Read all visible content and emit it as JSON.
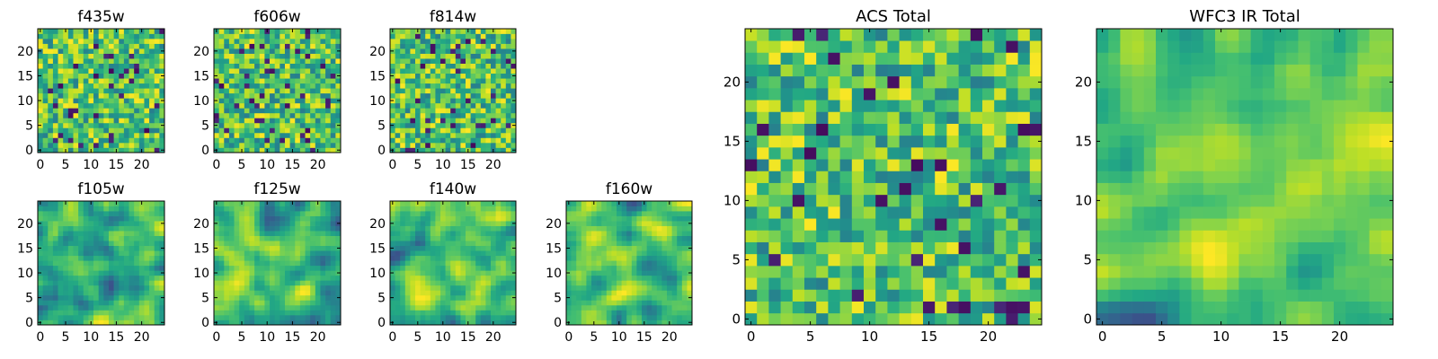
{
  "chart_data": [
    {
      "type": "heatmap",
      "title": "f435w",
      "grid_size": 25,
      "xticks": [
        0,
        5,
        10,
        15,
        20
      ],
      "yticks": [
        0,
        5,
        10,
        15,
        20
      ],
      "xlim": [
        0,
        25
      ],
      "ylim": [
        0,
        25
      ],
      "colormap": "viridis",
      "texture": "pixel noise",
      "seed": 11
    },
    {
      "type": "heatmap",
      "title": "f606w",
      "grid_size": 25,
      "xticks": [
        0,
        5,
        10,
        15,
        20
      ],
      "yticks": [
        0,
        5,
        10,
        15,
        20
      ],
      "xlim": [
        0,
        25
      ],
      "ylim": [
        0,
        25
      ],
      "colormap": "viridis",
      "texture": "pixel noise",
      "seed": 23
    },
    {
      "type": "heatmap",
      "title": "f814w",
      "grid_size": 25,
      "xticks": [
        0,
        5,
        10,
        15,
        20
      ],
      "yticks": [
        0,
        5,
        10,
        15,
        20
      ],
      "xlim": [
        0,
        25
      ],
      "ylim": [
        0,
        25
      ],
      "colormap": "viridis",
      "texture": "pixel noise",
      "seed": 37
    },
    {
      "type": "heatmap",
      "title": "f105w",
      "grid_size": 25,
      "xticks": [
        0,
        5,
        10,
        15,
        20
      ],
      "yticks": [
        0,
        5,
        10,
        15,
        20
      ],
      "xlim": [
        0,
        25
      ],
      "ylim": [
        0,
        25
      ],
      "colormap": "viridis",
      "texture": "smooth noise",
      "seed": 41
    },
    {
      "type": "heatmap",
      "title": "f125w",
      "grid_size": 25,
      "xticks": [
        0,
        5,
        10,
        15,
        20
      ],
      "yticks": [
        0,
        5,
        10,
        15,
        20
      ],
      "xlim": [
        0,
        25
      ],
      "ylim": [
        0,
        25
      ],
      "colormap": "viridis",
      "texture": "smooth noise",
      "seed": 53
    },
    {
      "type": "heatmap",
      "title": "f140w",
      "grid_size": 25,
      "xticks": [
        0,
        5,
        10,
        15,
        20
      ],
      "yticks": [
        0,
        5,
        10,
        15,
        20
      ],
      "xlim": [
        0,
        25
      ],
      "ylim": [
        0,
        25
      ],
      "colormap": "viridis",
      "texture": "smooth noise",
      "seed": 67
    },
    {
      "type": "heatmap",
      "title": "f160w",
      "grid_size": 25,
      "xticks": [
        0,
        5,
        10,
        15,
        20
      ],
      "yticks": [
        0,
        5,
        10,
        15,
        20
      ],
      "xlim": [
        0,
        25
      ],
      "ylim": [
        0,
        25
      ],
      "colormap": "viridis",
      "texture": "smooth noise",
      "seed": 71
    },
    {
      "type": "heatmap",
      "title": "ACS Total",
      "grid_size": 25,
      "xticks": [
        0,
        5,
        10,
        15,
        20
      ],
      "yticks": [
        0,
        5,
        10,
        15,
        20
      ],
      "xlim": [
        0,
        25
      ],
      "ylim": [
        0,
        25
      ],
      "colormap": "viridis",
      "texture": "pixel noise",
      "seed": 83
    },
    {
      "type": "heatmap",
      "title": "WFC3 IR Total",
      "grid_size": 25,
      "xticks": [
        0,
        5,
        10,
        15,
        20
      ],
      "yticks": [
        0,
        5,
        10,
        15,
        20
      ],
      "xlim": [
        0,
        25
      ],
      "ylim": [
        0,
        25
      ],
      "colormap": "viridis",
      "texture": "smooth noise",
      "seed": 97
    }
  ]
}
